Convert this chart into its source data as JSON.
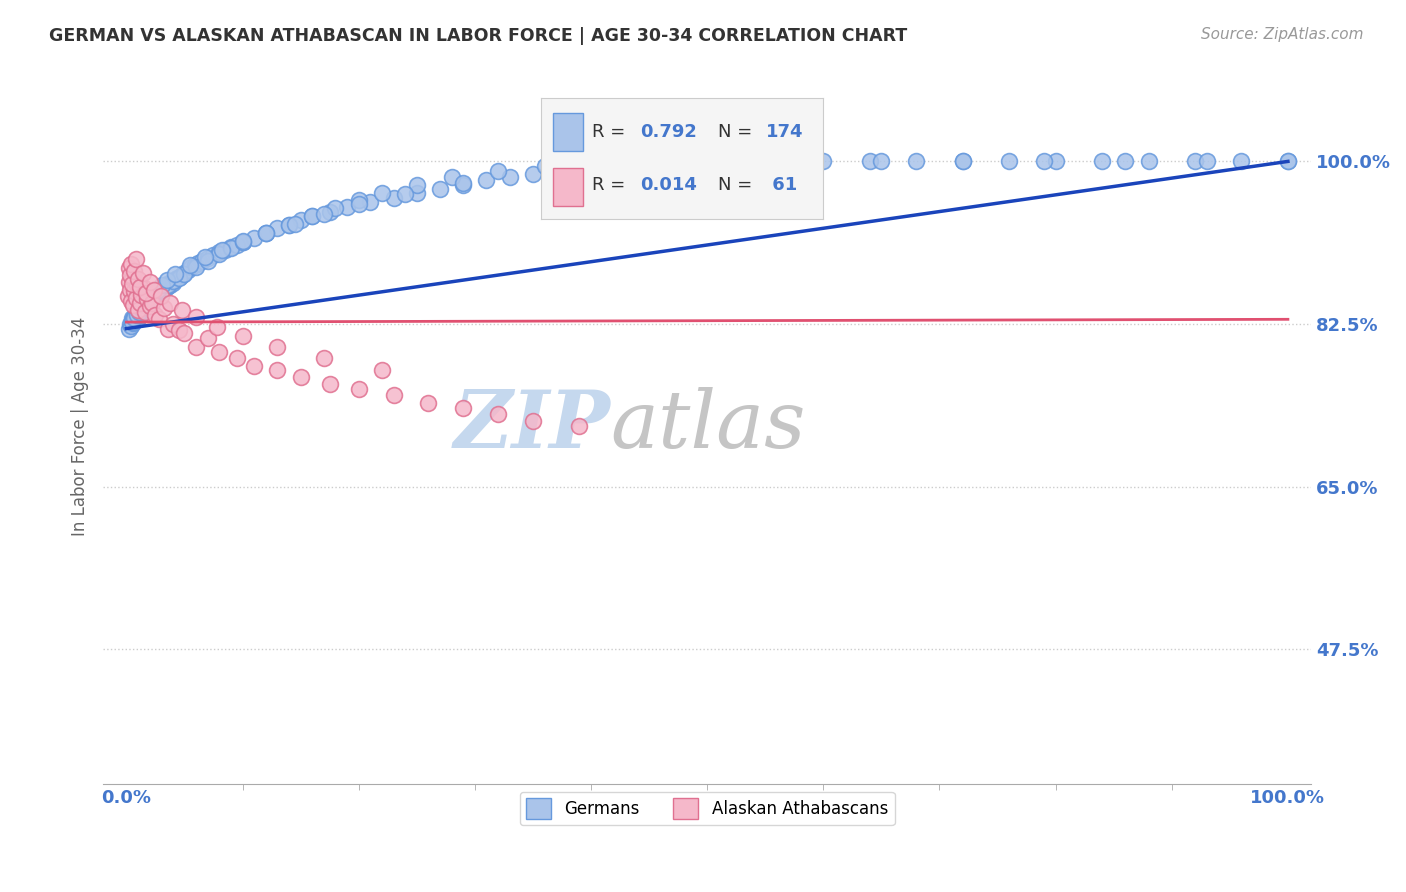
{
  "title": "GERMAN VS ALASKAN ATHABASCAN IN LABOR FORCE | AGE 30-34 CORRELATION CHART",
  "source_text": "Source: ZipAtlas.com",
  "ylabel": "In Labor Force | Age 30-34",
  "xlim": [
    -0.02,
    1.02
  ],
  "ylim": [
    0.33,
    1.1
  ],
  "yticks": [
    0.475,
    0.65,
    0.825,
    1.0
  ],
  "ytick_labels": [
    "47.5%",
    "65.0%",
    "82.5%",
    "100.0%"
  ],
  "xtick_labels": [
    "0.0%",
    "100.0%"
  ],
  "german_color": "#aac4ea",
  "german_edge_color": "#6699dd",
  "athabascan_color": "#f5b8ca",
  "athabascan_edge_color": "#e07090",
  "trend_german_color": "#1a44bb",
  "trend_athabascan_color": "#e05070",
  "background_color": "#ffffff",
  "grid_color": "#cccccc",
  "title_color": "#333333",
  "axis_label_color": "#4477cc",
  "watermark_zip_color": "#c5d8ee",
  "watermark_atlas_color": "#c5c5c5",
  "legend_face_color": "#f5f5f5",
  "legend_edge_color": "#cccccc",
  "german_scatter_x": [
    0.002,
    0.003,
    0.004,
    0.005,
    0.005,
    0.006,
    0.007,
    0.007,
    0.008,
    0.008,
    0.009,
    0.009,
    0.01,
    0.01,
    0.011,
    0.011,
    0.012,
    0.012,
    0.013,
    0.013,
    0.014,
    0.014,
    0.015,
    0.015,
    0.016,
    0.016,
    0.017,
    0.017,
    0.018,
    0.018,
    0.019,
    0.019,
    0.02,
    0.02,
    0.021,
    0.021,
    0.022,
    0.022,
    0.023,
    0.023,
    0.024,
    0.025,
    0.025,
    0.026,
    0.027,
    0.028,
    0.029,
    0.03,
    0.03,
    0.031,
    0.032,
    0.033,
    0.034,
    0.035,
    0.036,
    0.037,
    0.038,
    0.039,
    0.04,
    0.042,
    0.044,
    0.046,
    0.048,
    0.05,
    0.053,
    0.056,
    0.059,
    0.062,
    0.065,
    0.07,
    0.075,
    0.08,
    0.085,
    0.09,
    0.095,
    0.1,
    0.11,
    0.12,
    0.13,
    0.14,
    0.15,
    0.16,
    0.175,
    0.19,
    0.21,
    0.23,
    0.25,
    0.27,
    0.29,
    0.31,
    0.33,
    0.35,
    0.37,
    0.4,
    0.43,
    0.46,
    0.49,
    0.52,
    0.56,
    0.6,
    0.64,
    0.68,
    0.72,
    0.76,
    0.8,
    0.84,
    0.88,
    0.92,
    0.96,
    1.0,
    0.006,
    0.008,
    0.01,
    0.012,
    0.014,
    0.016,
    0.018,
    0.02,
    0.022,
    0.025,
    0.028,
    0.032,
    0.036,
    0.04,
    0.045,
    0.05,
    0.06,
    0.07,
    0.08,
    0.09,
    0.1,
    0.12,
    0.14,
    0.16,
    0.18,
    0.2,
    0.22,
    0.25,
    0.28,
    0.32,
    0.36,
    0.41,
    0.46,
    0.52,
    0.58,
    0.65,
    0.72,
    0.79,
    0.86,
    0.93,
    1.0,
    0.005,
    0.007,
    0.009,
    0.011,
    0.013,
    0.015,
    0.017,
    0.019,
    0.021,
    0.023,
    0.027,
    0.031,
    0.035,
    0.042,
    0.055,
    0.068,
    0.082,
    0.1,
    0.12,
    0.145,
    0.17,
    0.2,
    0.24,
    0.29
  ],
  "german_scatter_y": [
    0.82,
    0.825,
    0.823,
    0.828,
    0.831,
    0.826,
    0.83,
    0.833,
    0.829,
    0.834,
    0.832,
    0.836,
    0.831,
    0.835,
    0.833,
    0.837,
    0.835,
    0.838,
    0.836,
    0.84,
    0.838,
    0.842,
    0.84,
    0.843,
    0.841,
    0.845,
    0.843,
    0.847,
    0.845,
    0.848,
    0.847,
    0.85,
    0.848,
    0.852,
    0.85,
    0.853,
    0.851,
    0.855,
    0.853,
    0.857,
    0.855,
    0.858,
    0.856,
    0.86,
    0.858,
    0.861,
    0.86,
    0.863,
    0.861,
    0.864,
    0.863,
    0.866,
    0.864,
    0.867,
    0.866,
    0.869,
    0.867,
    0.87,
    0.869,
    0.872,
    0.874,
    0.876,
    0.878,
    0.88,
    0.883,
    0.886,
    0.888,
    0.891,
    0.893,
    0.896,
    0.899,
    0.902,
    0.905,
    0.908,
    0.91,
    0.913,
    0.918,
    0.923,
    0.928,
    0.932,
    0.937,
    0.941,
    0.946,
    0.951,
    0.956,
    0.961,
    0.966,
    0.97,
    0.975,
    0.98,
    0.983,
    0.986,
    0.989,
    0.992,
    0.994,
    0.996,
    0.998,
    0.999,
    1.0,
    1.0,
    1.0,
    1.0,
    1.0,
    1.0,
    1.0,
    1.0,
    1.0,
    1.0,
    1.0,
    1.0,
    0.83,
    0.835,
    0.838,
    0.84,
    0.843,
    0.845,
    0.848,
    0.85,
    0.853,
    0.857,
    0.86,
    0.864,
    0.867,
    0.871,
    0.875,
    0.879,
    0.886,
    0.893,
    0.9,
    0.907,
    0.913,
    0.923,
    0.932,
    0.941,
    0.95,
    0.958,
    0.966,
    0.975,
    0.983,
    0.99,
    0.995,
    0.998,
    1.0,
    1.0,
    1.0,
    1.0,
    1.0,
    1.0,
    1.0,
    1.0,
    1.0,
    0.827,
    0.831,
    0.835,
    0.838,
    0.842,
    0.845,
    0.848,
    0.851,
    0.854,
    0.857,
    0.862,
    0.867,
    0.872,
    0.879,
    0.888,
    0.897,
    0.905,
    0.914,
    0.923,
    0.933,
    0.943,
    0.954,
    0.965,
    0.977
  ],
  "athabascan_scatter_x": [
    0.001,
    0.002,
    0.003,
    0.004,
    0.005,
    0.006,
    0.007,
    0.008,
    0.009,
    0.01,
    0.011,
    0.012,
    0.013,
    0.015,
    0.016,
    0.018,
    0.02,
    0.022,
    0.025,
    0.028,
    0.032,
    0.036,
    0.04,
    0.045,
    0.05,
    0.06,
    0.07,
    0.08,
    0.095,
    0.11,
    0.13,
    0.15,
    0.175,
    0.2,
    0.23,
    0.26,
    0.29,
    0.32,
    0.35,
    0.39,
    0.002,
    0.003,
    0.004,
    0.005,
    0.007,
    0.008,
    0.01,
    0.012,
    0.014,
    0.017,
    0.02,
    0.024,
    0.03,
    0.038,
    0.048,
    0.06,
    0.078,
    0.1,
    0.13,
    0.17,
    0.22
  ],
  "athabascan_scatter_y": [
    0.855,
    0.87,
    0.862,
    0.85,
    0.875,
    0.845,
    0.86,
    0.853,
    0.867,
    0.84,
    0.872,
    0.848,
    0.856,
    0.864,
    0.838,
    0.852,
    0.844,
    0.848,
    0.835,
    0.83,
    0.842,
    0.82,
    0.825,
    0.818,
    0.815,
    0.8,
    0.81,
    0.795,
    0.788,
    0.78,
    0.775,
    0.768,
    0.76,
    0.755,
    0.748,
    0.74,
    0.735,
    0.728,
    0.72,
    0.715,
    0.885,
    0.878,
    0.89,
    0.868,
    0.882,
    0.895,
    0.873,
    0.865,
    0.88,
    0.858,
    0.87,
    0.862,
    0.855,
    0.848,
    0.84,
    0.832,
    0.822,
    0.812,
    0.8,
    0.788,
    0.775
  ],
  "trend_german_y_start": 0.82,
  "trend_german_y_end": 1.0,
  "trend_athabascan_y": 0.827
}
